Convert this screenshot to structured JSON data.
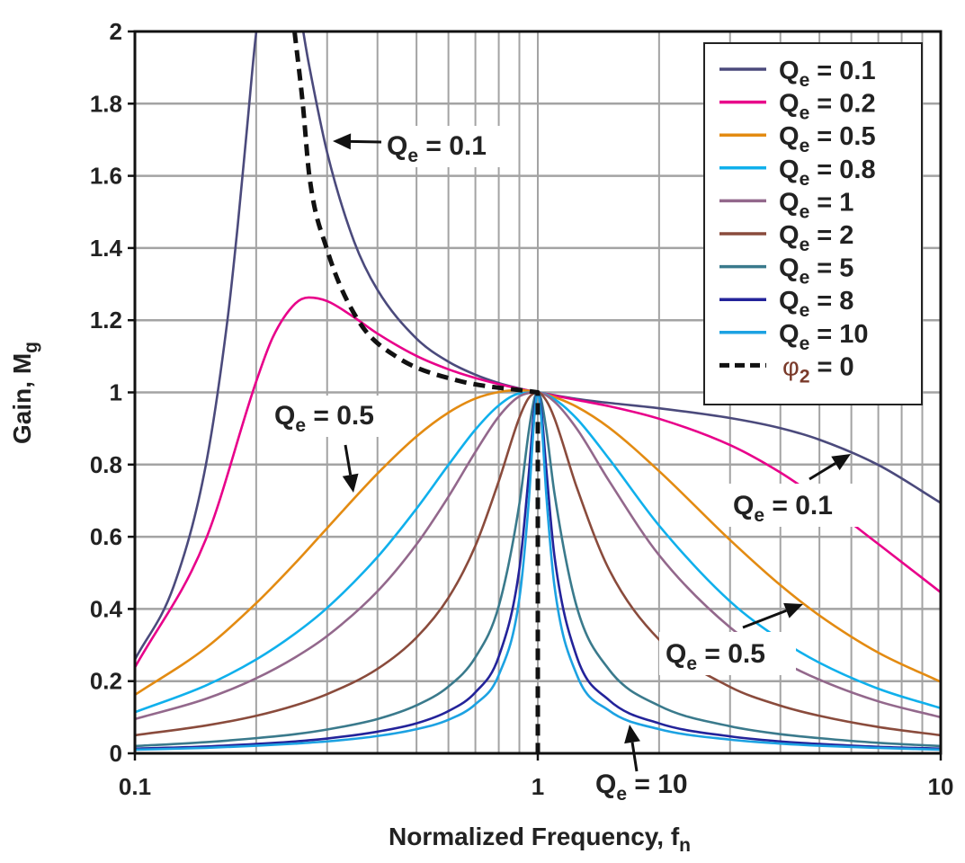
{
  "chart_data": {
    "type": "line",
    "xlabel": {
      "main": "Normalized Frequency, f",
      "sub": "n"
    },
    "ylabel": {
      "main": "Gain, M",
      "sub": "g"
    },
    "x_scale": "log",
    "xlim": [
      0.1,
      10
    ],
    "ylim": [
      0,
      2
    ],
    "x_ticks": [
      "0.1",
      "1",
      "10"
    ],
    "y_ticks": [
      "0",
      "0.2",
      "0.4",
      "0.6",
      "0.8",
      "1",
      "1.2",
      "1.4",
      "1.6",
      "1.8",
      "2"
    ],
    "grid": true,
    "legend_position": "top-right",
    "series": [
      {
        "name": {
          "main": "Q",
          "sub": "e",
          "rest": " = 0.1"
        },
        "color": "#4b4a7c",
        "style": "solid",
        "x": [
          0.1,
          0.125,
          0.15,
          0.17,
          0.18,
          0.19,
          0.2,
          0.22,
          0.25,
          0.27,
          0.3,
          0.35,
          0.4,
          0.5,
          0.6,
          0.7,
          0.8,
          0.9,
          0.95,
          1,
          1.05,
          1.1,
          1.25,
          1.5,
          2,
          3,
          4,
          5,
          7,
          10
        ],
        "y": [
          0.26,
          0.465,
          0.799,
          1.207,
          1.463,
          1.738,
          1.997,
          2.287,
          2.121,
          1.912,
          1.665,
          1.418,
          1.284,
          1.149,
          1.085,
          1.049,
          1.026,
          1.011,
          1.005,
          1,
          0.996,
          0.992,
          0.982,
          0.971,
          0.956,
          0.929,
          0.901,
          0.869,
          0.799,
          0.694
        ]
      },
      {
        "name": {
          "main": "Q",
          "sub": "e",
          "rest": " = 0.2"
        },
        "color": "#e8008a",
        "style": "solid",
        "x": [
          0.1,
          0.15,
          0.2,
          0.22,
          0.25,
          0.27,
          0.3,
          0.35,
          0.4,
          0.5,
          0.6,
          0.7,
          0.8,
          0.9,
          1,
          1.1,
          1.25,
          1.5,
          2,
          3,
          4,
          5,
          7,
          10
        ],
        "y": [
          0.238,
          0.593,
          1.03,
          1.153,
          1.246,
          1.263,
          1.253,
          1.208,
          1.163,
          1.101,
          1.064,
          1.04,
          1.023,
          1.01,
          1,
          0.991,
          0.979,
          0.962,
          0.927,
          0.854,
          0.778,
          0.704,
          0.58,
          0.446
        ]
      },
      {
        "name": {
          "main": "Q",
          "sub": "e",
          "rest": " = 0.5"
        },
        "color": "#e38b12",
        "style": "solid",
        "x": [
          0.1,
          0.15,
          0.2,
          0.25,
          0.3,
          0.4,
          0.5,
          0.6,
          0.7,
          0.8,
          0.9,
          1,
          1.1,
          1.25,
          1.5,
          2,
          3,
          4,
          5,
          7,
          10
        ],
        "y": [
          0.162,
          0.292,
          0.416,
          0.527,
          0.624,
          0.775,
          0.878,
          0.944,
          0.983,
          1.001,
          1.006,
          1,
          0.987,
          0.96,
          0.903,
          0.782,
          0.591,
          0.466,
          0.382,
          0.279,
          0.198
        ]
      },
      {
        "name": {
          "main": "Q",
          "sub": "e",
          "rest": " = 0.8"
        },
        "color": "#10b0ec",
        "style": "solid",
        "x": [
          0.1,
          0.15,
          0.2,
          0.25,
          0.3,
          0.4,
          0.5,
          0.6,
          0.7,
          0.8,
          0.9,
          1,
          1.1,
          1.25,
          1.5,
          2,
          3,
          4,
          5,
          7,
          10
        ],
        "y": [
          0.114,
          0.188,
          0.26,
          0.332,
          0.403,
          0.544,
          0.678,
          0.799,
          0.897,
          0.964,
          0.997,
          1,
          0.981,
          0.927,
          0.817,
          0.631,
          0.421,
          0.315,
          0.251,
          0.179,
          0.125
        ]
      },
      {
        "name": {
          "main": "Q",
          "sub": "e",
          "rest": " = 1"
        },
        "color": "#93688c",
        "style": "solid",
        "x": [
          0.1,
          0.15,
          0.2,
          0.25,
          0.3,
          0.4,
          0.5,
          0.6,
          0.7,
          0.8,
          0.9,
          1,
          1.1,
          1.25,
          1.5,
          2,
          3,
          4,
          5,
          7,
          10
        ],
        "y": [
          0.095,
          0.151,
          0.208,
          0.266,
          0.325,
          0.449,
          0.579,
          0.711,
          0.835,
          0.933,
          0.989,
          1,
          0.974,
          0.899,
          0.756,
          0.549,
          0.349,
          0.257,
          0.204,
          0.144,
          0.1
        ]
      },
      {
        "name": {
          "main": "Q",
          "sub": "e",
          "rest": " = 2"
        },
        "color": "#8a4b3c",
        "style": "solid",
        "x": [
          0.1,
          0.15,
          0.2,
          0.25,
          0.3,
          0.4,
          0.5,
          0.6,
          0.7,
          0.8,
          0.9,
          0.95,
          1,
          1.05,
          1.1,
          1.25,
          1.5,
          2,
          3,
          4,
          5,
          7,
          10
        ],
        "y": [
          0.05,
          0.077,
          0.104,
          0.133,
          0.164,
          0.234,
          0.321,
          0.431,
          0.575,
          0.754,
          0.93,
          0.985,
          1,
          0.977,
          0.928,
          0.736,
          0.511,
          0.315,
          0.184,
          0.132,
          0.104,
          0.073,
          0.05
        ]
      },
      {
        "name": {
          "main": "Q",
          "sub": "e",
          "rest": " = 5"
        },
        "color": "#3a7a8c",
        "style": "solid",
        "x": [
          0.1,
          0.15,
          0.2,
          0.25,
          0.3,
          0.4,
          0.5,
          0.6,
          0.7,
          0.8,
          0.9,
          0.95,
          0.98,
          1,
          1.02,
          1.05,
          1.1,
          1.25,
          1.5,
          2,
          3,
          4,
          5,
          7,
          10
        ],
        "y": [
          0.02,
          0.031,
          0.042,
          0.053,
          0.066,
          0.095,
          0.133,
          0.185,
          0.266,
          0.408,
          0.691,
          0.893,
          0.982,
          1,
          0.979,
          0.896,
          0.72,
          0.405,
          0.233,
          0.132,
          0.075,
          0.053,
          0.042,
          0.029,
          0.02
        ]
      },
      {
        "name": {
          "main": "Q",
          "sub": "e",
          "rest": " = 8"
        },
        "color": "#23239a",
        "style": "solid",
        "x": [
          0.1,
          0.15,
          0.2,
          0.25,
          0.3,
          0.4,
          0.5,
          0.6,
          0.7,
          0.8,
          0.9,
          0.95,
          0.98,
          1,
          1.02,
          1.05,
          1.1,
          1.25,
          1.5,
          2,
          3,
          4,
          5,
          7,
          10
        ],
        "y": [
          0.013,
          0.019,
          0.026,
          0.033,
          0.041,
          0.06,
          0.083,
          0.117,
          0.169,
          0.268,
          0.511,
          0.775,
          0.953,
          1,
          0.951,
          0.786,
          0.546,
          0.267,
          0.148,
          0.083,
          0.047,
          0.033,
          0.026,
          0.018,
          0.013
        ]
      },
      {
        "name": {
          "main": "Q",
          "sub": "e",
          "rest": " = 10"
        },
        "color": "#1ca2e2",
        "style": "solid",
        "x": [
          0.1,
          0.15,
          0.2,
          0.25,
          0.3,
          0.4,
          0.5,
          0.6,
          0.7,
          0.8,
          0.9,
          0.95,
          0.98,
          1,
          1.02,
          1.05,
          1.1,
          1.25,
          1.5,
          2,
          3,
          4,
          5,
          7,
          10
        ],
        "y": [
          0.01,
          0.015,
          0.021,
          0.027,
          0.033,
          0.048,
          0.067,
          0.093,
          0.136,
          0.217,
          0.429,
          0.7,
          0.929,
          1,
          0.928,
          0.714,
          0.463,
          0.217,
          0.119,
          0.067,
          0.038,
          0.027,
          0.021,
          0.015,
          0.01
        ]
      },
      {
        "name": {
          "main": "φ",
          "sub": "2",
          "rest": " = 0"
        },
        "color": "#111111",
        "style": "dashed",
        "x": [
          0.249,
          0.261,
          0.271,
          0.299,
          0.358,
          0.444,
          0.627,
          1,
          1
        ],
        "y": [
          2.0,
          1.8,
          1.6,
          1.4,
          1.2,
          1.1,
          1.034,
          1,
          0
        ]
      }
    ],
    "annotations": [
      {
        "main": "Q",
        "sub": "e",
        "rest": " = 0.1"
      },
      {
        "main": "Q",
        "sub": "e",
        "rest": " = 0.5"
      },
      {
        "main": "Q",
        "sub": "e",
        "rest": " = 0.1"
      },
      {
        "main": "Q",
        "sub": "e",
        "rest": " = 0.5"
      },
      {
        "main": "Q",
        "sub": "e",
        "rest": " = 10"
      }
    ]
  }
}
